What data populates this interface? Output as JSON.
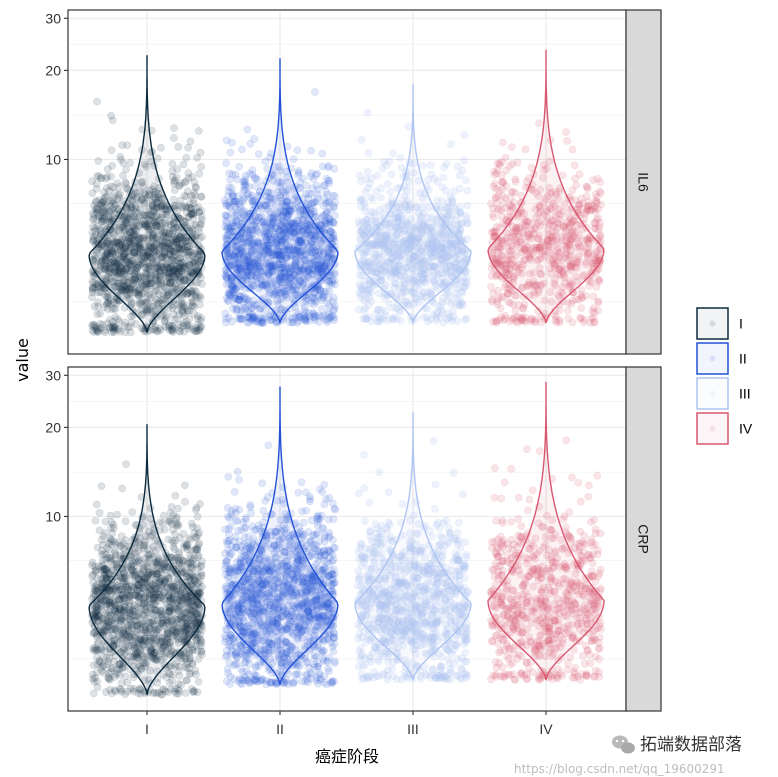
{
  "chart_data": {
    "type": "violin",
    "categories": [
      "I",
      "II",
      "III",
      "IV"
    ],
    "xlabel": "癌症阶段",
    "ylabel": "value",
    "yscale": "log",
    "ylim": [
      2.2,
      32
    ],
    "y_tick_labels": [
      "10",
      "20",
      "30"
    ],
    "y_tick_values": [
      10,
      20,
      30
    ],
    "grid": true,
    "legend_position": "right",
    "legend": [
      {
        "label": "I",
        "color": "#0d2b3f"
      },
      {
        "label": "II",
        "color": "#2352d8"
      },
      {
        "label": "III",
        "color": "#aec4f2"
      },
      {
        "label": "IV",
        "color": "#d9576f"
      }
    ],
    "panels": [
      {
        "label": "IL6",
        "series": [
          {
            "category": "I",
            "min": 2.6,
            "center": 4.8,
            "max": 22.5,
            "n_points": 1400
          },
          {
            "category": "II",
            "min": 2.8,
            "center": 4.9,
            "max": 22.0,
            "n_points": 1400
          },
          {
            "category": "III",
            "min": 2.8,
            "center": 4.9,
            "max": 18.0,
            "n_points": 900
          },
          {
            "category": "IV",
            "min": 2.8,
            "center": 5.0,
            "max": 23.5,
            "n_points": 700
          }
        ]
      },
      {
        "label": "CRP",
        "series": [
          {
            "category": "I",
            "min": 2.5,
            "center": 5.0,
            "max": 20.5,
            "n_points": 1400
          },
          {
            "category": "II",
            "min": 2.7,
            "center": 5.1,
            "max": 27.5,
            "n_points": 1400
          },
          {
            "category": "III",
            "min": 2.8,
            "center": 5.1,
            "max": 22.5,
            "n_points": 900
          },
          {
            "category": "IV",
            "min": 2.8,
            "center": 5.2,
            "max": 28.5,
            "n_points": 700
          }
        ]
      }
    ]
  },
  "colors": {
    "panel_border": "#333333",
    "grid_major": "#ebebeb",
    "grid_minor": "#f5f5f5",
    "strip_fill": "#d9d9d9",
    "background": "#ffffff"
  },
  "watermark": {
    "brand": "拓端数据部落",
    "url": "https://blog.csdn.net/qq_19600291"
  }
}
